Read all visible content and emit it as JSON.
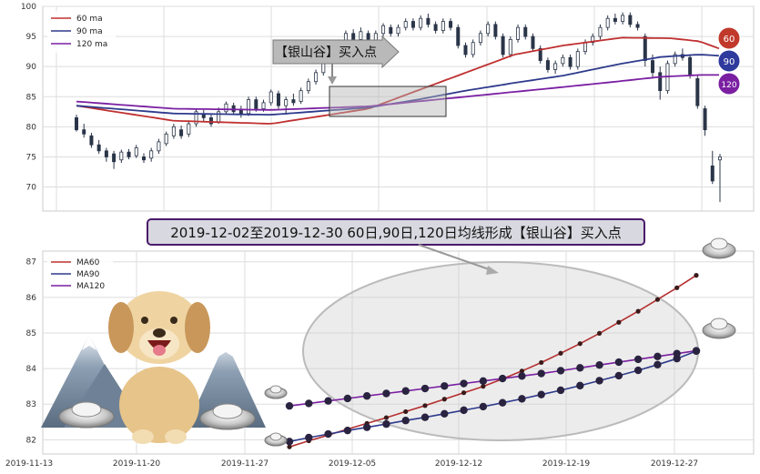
{
  "chart_data": [
    {
      "type": "candlestick",
      "legend": [
        {
          "name": "60 ma",
          "color": "#c03030"
        },
        {
          "name": "90 ma",
          "color": "#2e3a8c"
        },
        {
          "name": "120 ma",
          "color": "#7a1fa2"
        }
      ],
      "ylim": [
        66,
        100
      ],
      "yticks": [
        70,
        75,
        80,
        85,
        90,
        95,
        100
      ],
      "annotation": "【银山谷】买入点",
      "badges": [
        {
          "label": "60",
          "color": "#c0392b"
        },
        {
          "label": "90",
          "color": "#2e3a9c"
        },
        {
          "label": "120",
          "color": "#7a1fa2"
        }
      ],
      "candles": [
        [
          81.5,
          79.5,
          82.0,
          79.2
        ],
        [
          79.5,
          78.8,
          80.5,
          78.2
        ],
        [
          78.5,
          77.0,
          79.0,
          76.5
        ],
        [
          77.0,
          76.0,
          77.8,
          75.5
        ],
        [
          76.0,
          75.0,
          76.5,
          74.2
        ],
        [
          75.5,
          74.2,
          76.0,
          73.0
        ],
        [
          74.5,
          75.8,
          76.2,
          74.0
        ],
        [
          75.8,
          75.0,
          76.3,
          74.6
        ],
        [
          75.2,
          76.5,
          77.0,
          74.8
        ],
        [
          75.0,
          74.5,
          75.6,
          74.0
        ],
        [
          74.8,
          76.0,
          76.5,
          74.2
        ],
        [
          76.0,
          77.5,
          78.0,
          75.5
        ],
        [
          77.2,
          78.8,
          79.2,
          76.8
        ],
        [
          78.5,
          80.0,
          80.5,
          78.0
        ],
        [
          79.5,
          78.5,
          80.2,
          78.0
        ],
        [
          78.8,
          80.5,
          81.0,
          78.3
        ],
        [
          80.5,
          82.5,
          83.0,
          80.0
        ],
        [
          82.0,
          81.5,
          82.8,
          80.8
        ],
        [
          81.5,
          80.5,
          82.0,
          80.0
        ],
        [
          80.8,
          82.5,
          83.2,
          80.5
        ],
        [
          82.5,
          83.8,
          84.2,
          82.0
        ],
        [
          83.5,
          82.5,
          84.0,
          82.0
        ],
        [
          82.8,
          82.0,
          83.5,
          81.5
        ],
        [
          82.2,
          84.5,
          85.0,
          81.8
        ],
        [
          84.5,
          83.0,
          85.0,
          82.5
        ],
        [
          83.0,
          84.0,
          84.5,
          82.5
        ],
        [
          84.0,
          85.8,
          86.2,
          83.5
        ],
        [
          85.5,
          83.5,
          86.0,
          83.0
        ],
        [
          83.5,
          84.5,
          85.0,
          82.0
        ],
        [
          84.5,
          84.0,
          85.5,
          83.5
        ],
        [
          84.2,
          86.0,
          86.5,
          83.8
        ],
        [
          86.0,
          87.5,
          88.0,
          85.5
        ],
        [
          87.5,
          89.0,
          89.5,
          87.0
        ],
        [
          89.0,
          91.5,
          92.0,
          88.5
        ],
        [
          91.0,
          92.5,
          93.0,
          90.5
        ],
        [
          92.5,
          94.0,
          94.5,
          92.0
        ],
        [
          94.0,
          95.5,
          96.0,
          93.5
        ],
        [
          95.5,
          94.5,
          96.2,
          94.0
        ],
        [
          94.5,
          95.8,
          96.5,
          94.0
        ],
        [
          95.5,
          94.0,
          96.0,
          93.5
        ],
        [
          94.2,
          95.5,
          96.0,
          93.8
        ],
        [
          95.5,
          96.8,
          97.2,
          95.0
        ],
        [
          96.5,
          95.5,
          97.0,
          95.0
        ],
        [
          95.5,
          96.5,
          97.0,
          95.0
        ],
        [
          96.5,
          97.5,
          98.0,
          96.0
        ],
        [
          97.5,
          96.5,
          98.0,
          96.0
        ],
        [
          96.5,
          98.0,
          98.5,
          96.0
        ],
        [
          98.0,
          97.0,
          98.8,
          96.5
        ],
        [
          97.0,
          96.0,
          97.5,
          95.5
        ],
        [
          96.0,
          97.5,
          98.0,
          95.5
        ],
        [
          97.5,
          96.5,
          98.0,
          96.0
        ],
        [
          96.5,
          93.5,
          97.0,
          93.0
        ],
        [
          93.5,
          92.0,
          94.0,
          91.5
        ],
        [
          92.0,
          94.0,
          94.5,
          91.5
        ],
        [
          94.0,
          95.5,
          96.0,
          93.5
        ],
        [
          95.5,
          97.0,
          97.5,
          95.0
        ],
        [
          97.0,
          95.0,
          97.5,
          94.5
        ],
        [
          95.0,
          92.0,
          95.5,
          91.5
        ],
        [
          92.0,
          94.5,
          95.0,
          91.5
        ],
        [
          94.5,
          96.5,
          97.0,
          94.0
        ],
        [
          96.5,
          95.0,
          97.0,
          94.5
        ],
        [
          95.0,
          93.0,
          95.5,
          92.5
        ],
        [
          93.0,
          91.0,
          93.5,
          90.5
        ],
        [
          91.0,
          89.5,
          91.5,
          89.0
        ],
        [
          89.5,
          90.5,
          91.0,
          88.8
        ],
        [
          90.5,
          91.5,
          92.0,
          90.0
        ],
        [
          91.5,
          90.0,
          92.0,
          89.5
        ],
        [
          90.0,
          92.5,
          93.0,
          89.5
        ],
        [
          92.5,
          94.0,
          94.5,
          92.0
        ],
        [
          94.0,
          95.0,
          95.5,
          93.5
        ],
        [
          95.0,
          96.5,
          97.0,
          94.5
        ],
        [
          96.5,
          98.0,
          98.5,
          96.0
        ],
        [
          98.0,
          97.5,
          98.8,
          97.0
        ],
        [
          97.5,
          98.5,
          99.0,
          97.0
        ],
        [
          98.5,
          97.0,
          99.0,
          96.5
        ],
        [
          97.0,
          96.5,
          97.5,
          96.0
        ],
        [
          95.0,
          91.0,
          95.5,
          90.0
        ],
        [
          91.0,
          89.0,
          92.0,
          88.0
        ],
        [
          89.0,
          86.0,
          90.0,
          84.5
        ],
        [
          86.0,
          90.5,
          91.0,
          85.5
        ],
        [
          90.5,
          92.0,
          92.5,
          90.0
        ],
        [
          92.0,
          91.5,
          93.0,
          91.0
        ],
        [
          91.5,
          88.5,
          92.0,
          88.0
        ],
        [
          88.0,
          83.5,
          88.5,
          83.0
        ],
        [
          83.0,
          79.5,
          83.5,
          78.5
        ],
        [
          73.5,
          71.0,
          76.0,
          70.5
        ],
        [
          74.5,
          75.0,
          75.5,
          67.5
        ]
      ],
      "ma60": [
        [
          0,
          83.5
        ],
        [
          20,
          81.0
        ],
        [
          40,
          80.5
        ],
        [
          60,
          83.0
        ],
        [
          70,
          86.0
        ],
        [
          80,
          89.0
        ],
        [
          90,
          92.0
        ],
        [
          100,
          93.5
        ],
        [
          112,
          94.8
        ],
        [
          122,
          94.7
        ],
        [
          128,
          94.2
        ],
        [
          132,
          93.0
        ]
      ],
      "ma90": [
        [
          0,
          83.5
        ],
        [
          20,
          82.2
        ],
        [
          40,
          82.0
        ],
        [
          60,
          83.2
        ],
        [
          70,
          84.5
        ],
        [
          80,
          86.0
        ],
        [
          90,
          87.3
        ],
        [
          100,
          88.5
        ],
        [
          112,
          90.5
        ],
        [
          120,
          91.6
        ],
        [
          128,
          92.0
        ],
        [
          132,
          91.8
        ]
      ],
      "ma120": [
        [
          0,
          84.2
        ],
        [
          20,
          83.0
        ],
        [
          40,
          82.8
        ],
        [
          60,
          83.4
        ],
        [
          70,
          84.2
        ],
        [
          80,
          85.0
        ],
        [
          90,
          85.8
        ],
        [
          100,
          86.6
        ],
        [
          112,
          87.6
        ],
        [
          120,
          88.3
        ],
        [
          128,
          88.6
        ],
        [
          132,
          88.6
        ]
      ]
    },
    {
      "type": "line",
      "legend": [
        {
          "name": "MA60",
          "color": "#c03030"
        },
        {
          "name": "MA90",
          "color": "#2e3a8c"
        },
        {
          "name": "MA120",
          "color": "#7a1fa2"
        }
      ],
      "ylim": [
        81.6,
        87.3
      ],
      "yticks": [
        82,
        83,
        84,
        85,
        86,
        87
      ],
      "x_tick_labels": [
        "2019-11-13",
        "2019-11-20",
        "2019-11-27",
        "2019-12-05",
        "2019-12-12",
        "2019-12-19",
        "2019-12-27"
      ],
      "title_box": "2019-12-02至2019-12-30 60日,90日,120日均线形成【银山谷】买入点",
      "series": [
        {
          "name": "MA60",
          "color": "#b53030",
          "values": [
            81.8,
            81.97,
            82.13,
            82.3,
            82.46,
            82.62,
            82.79,
            82.96,
            83.14,
            83.32,
            83.5,
            83.71,
            83.93,
            84.17,
            84.43,
            84.7,
            84.99,
            85.3,
            85.61,
            85.94,
            86.27,
            86.62
          ]
        },
        {
          "name": "MA90",
          "color": "#2e3a8c",
          "values": [
            81.95,
            82.06,
            82.16,
            82.26,
            82.35,
            82.44,
            82.54,
            82.63,
            82.73,
            82.83,
            82.93,
            83.04,
            83.15,
            83.27,
            83.39,
            83.52,
            83.66,
            83.8,
            83.95,
            84.11,
            84.28,
            84.49
          ]
        },
        {
          "name": "MA120",
          "color": "#7a1fa2",
          "values": [
            82.95,
            83.02,
            83.09,
            83.16,
            83.23,
            83.3,
            83.37,
            83.44,
            83.51,
            83.58,
            83.65,
            83.72,
            83.79,
            83.86,
            83.94,
            84.02,
            84.1,
            84.18,
            84.26,
            84.34,
            84.42,
            84.5
          ]
        }
      ]
    }
  ]
}
